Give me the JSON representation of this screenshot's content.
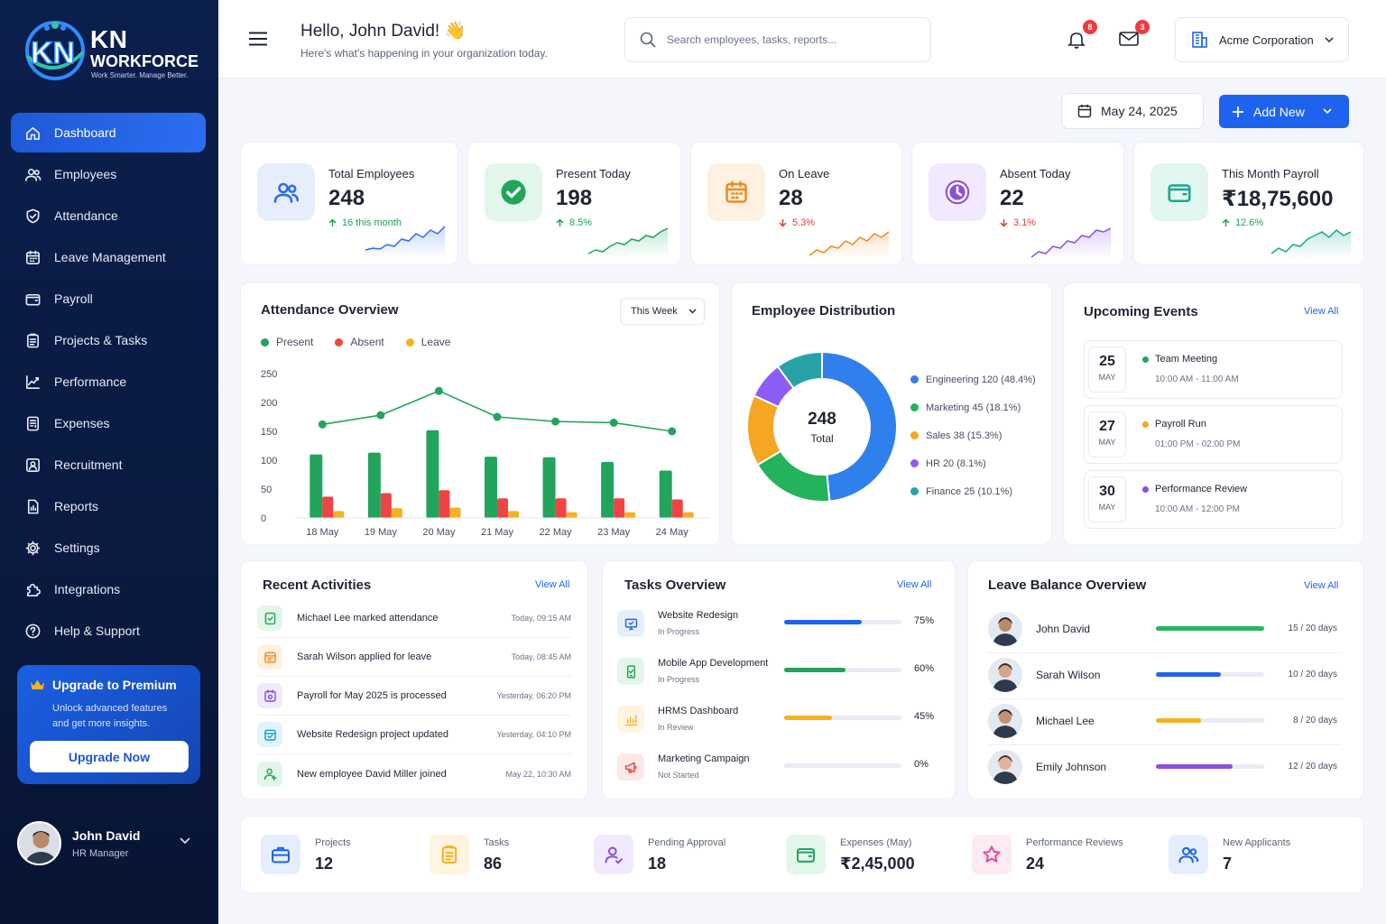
{
  "brand": {
    "title": "KN",
    "subtitle": "WORKFORCE",
    "tagline": "Work Smarter. Manage Better."
  },
  "nav": [
    {
      "label": "Dashboard",
      "icon": "home-icon",
      "active": true
    },
    {
      "label": "Employees",
      "icon": "users-icon"
    },
    {
      "label": "Attendance",
      "icon": "shield-check-icon"
    },
    {
      "label": "Leave Management",
      "icon": "calendar-icon"
    },
    {
      "label": "Payroll",
      "icon": "wallet-icon"
    },
    {
      "label": "Projects & Tasks",
      "icon": "clipboard-icon"
    },
    {
      "label": "Performance",
      "icon": "chart-line-icon"
    },
    {
      "label": "Expenses",
      "icon": "receipt-icon"
    },
    {
      "label": "Recruitment",
      "icon": "user-plus-icon"
    },
    {
      "label": "Reports",
      "icon": "report-icon"
    },
    {
      "label": "Settings",
      "icon": "gear-icon"
    },
    {
      "label": "Integrations",
      "icon": "puzzle-icon"
    },
    {
      "label": "Help & Support",
      "icon": "help-icon"
    }
  ],
  "premium": {
    "title": "Upgrade to Premium",
    "desc": "Unlock advanced features and get more insights.",
    "button": "Upgrade Now"
  },
  "user": {
    "name": "John David",
    "role": "HR Manager"
  },
  "header": {
    "greeting": "Hello, John David! 👋",
    "subtitle": "Here's what's happening in your organization today.",
    "search_placeholder": "Search employees, tasks, reports...",
    "notif_count": "8",
    "mail_count": "3",
    "company": "Acme Corporation"
  },
  "toolbar": {
    "date": "May 24, 2025",
    "add_label": "Add New"
  },
  "stats": [
    {
      "label": "Total Employees",
      "value": "248",
      "trend": "16 this month",
      "dir": "up",
      "color": "#2f6bef",
      "bg": "#e6eefe",
      "trend_color": "#1ea353",
      "icon": "users-icon"
    },
    {
      "label": "Present Today",
      "value": "198",
      "trend": "8.5%",
      "dir": "up",
      "color": "#22a45d",
      "bg": "#e3f6ea",
      "trend_color": "#1ea353",
      "icon": "check-circle-icon"
    },
    {
      "label": "On Leave",
      "value": "28",
      "trend": "5.3%",
      "dir": "down",
      "color": "#f08a1c",
      "bg": "#fff1e2",
      "trend_color": "#e53935",
      "icon": "calendar-icon"
    },
    {
      "label": "Absent Today",
      "value": "22",
      "trend": "3.1%",
      "dir": "down",
      "color": "#8b4fe0",
      "bg": "#f1e9fd",
      "trend_color": "#e53935",
      "icon": "clock-icon"
    },
    {
      "label": "This Month Payroll",
      "value": "₹18,75,600",
      "trend": "12.6%",
      "dir": "up",
      "color": "#18a88e",
      "bg": "#e2f6f1",
      "trend_color": "#1ea353",
      "icon": "wallet-icon"
    }
  ],
  "attendance": {
    "title": "Attendance Overview",
    "filter": "This Week"
  },
  "distribution": {
    "title": "Employee Distribution",
    "total": "248",
    "total_label": "Total"
  },
  "events": {
    "title": "Upcoming Events",
    "view_all": "View All",
    "items": [
      {
        "day": "25",
        "month": "MAY",
        "title": "Team Meeting",
        "time": "10:00 AM - 11:00 AM",
        "color": "#22a45d"
      },
      {
        "day": "27",
        "month": "MAY",
        "title": "Payroll Run",
        "time": "01:00 PM - 02:00 PM",
        "color": "#f5a623"
      },
      {
        "day": "30",
        "month": "MAY",
        "title": "Performance Review",
        "time": "10:00 AM - 12:00 PM",
        "color": "#8b4fe0"
      }
    ]
  },
  "activities": {
    "title": "Recent Activities",
    "view_all": "View All",
    "items": [
      {
        "text": "Michael Lee marked attendance",
        "time": "Today, 09:15 AM",
        "color": "#22a45d",
        "bg": "#e3f6ea",
        "icon": "attendance-icon"
      },
      {
        "text": "Sarah Wilson applied for leave",
        "time": "Today, 08:45 AM",
        "color": "#f08a1c",
        "bg": "#fff1e2",
        "icon": "leave-icon"
      },
      {
        "text": "Payroll for May 2025 is processed",
        "time": "Yesterday, 06:20 PM",
        "color": "#8b4fe0",
        "bg": "#f1e9fd",
        "icon": "payroll-icon"
      },
      {
        "text": "Website Redesign project updated",
        "time": "Yesterday, 04:10 PM",
        "color": "#18a0c8",
        "bg": "#e2f4fb",
        "icon": "project-icon"
      },
      {
        "text": "New employee David Miller joined",
        "time": "May 22, 10:30 AM",
        "color": "#22a45d",
        "bg": "#e3f6ea",
        "icon": "user-add-icon"
      }
    ]
  },
  "tasks": {
    "title": "Tasks Overview",
    "view_all": "View All",
    "items": [
      {
        "name": "Website Redesign",
        "status": "In Progress",
        "pct": "75%",
        "fill": 0.66,
        "color": "#1e63ee",
        "bg": "#e6eefe",
        "icon": "monitor-icon"
      },
      {
        "name": "Mobile App Development",
        "status": "In Progress",
        "pct": "60%",
        "fill": 0.52,
        "color": "#22a45d",
        "bg": "#e3f6ea",
        "icon": "phone-icon"
      },
      {
        "name": "HRMS Dashboard",
        "status": "In Review",
        "pct": "45%",
        "fill": 0.41,
        "color": "#f5b120",
        "bg": "#fff4df",
        "icon": "chart-bar-icon"
      },
      {
        "name": "Marketing Campaign",
        "status": "Not Started",
        "pct": "0%",
        "fill": 0,
        "color": "#ef4444",
        "bg": "#fde8e8",
        "icon": "megaphone-icon"
      }
    ]
  },
  "leave_balance": {
    "title": "Leave Balance Overview",
    "view_all": "View All",
    "items": [
      {
        "name": "John David",
        "days": "15 / 20 days",
        "fill": 1.0,
        "color": "#22b864"
      },
      {
        "name": "Sarah Wilson",
        "days": "10 / 20 days",
        "fill": 0.6,
        "color": "#1e63ee"
      },
      {
        "name": "Michael Lee",
        "days": "8 / 20 days",
        "fill": 0.42,
        "color": "#f5b120"
      },
      {
        "name": "Emily Johnson",
        "days": "12 / 20 days",
        "fill": 0.71,
        "color": "#8b4fe0"
      }
    ]
  },
  "summary": [
    {
      "label": "Projects",
      "value": "12",
      "color": "#1e63ee",
      "bg": "#e6eefe",
      "icon": "briefcase-icon"
    },
    {
      "label": "Tasks",
      "value": "86",
      "color": "#f5b120",
      "bg": "#fff4df",
      "icon": "clipboard-icon"
    },
    {
      "label": "Pending Approval",
      "value": "18",
      "color": "#8b4fe0",
      "bg": "#f1e9fd",
      "icon": "user-check-icon"
    },
    {
      "label": "Expenses (May)",
      "value": "₹2,45,000",
      "color": "#22a45d",
      "bg": "#e3f6ea",
      "icon": "wallet-icon"
    },
    {
      "label": "Performance Reviews",
      "value": "24",
      "color": "#ec4899",
      "bg": "#fdeaf3",
      "icon": "star-icon"
    },
    {
      "label": "New Applicants",
      "value": "7",
      "color": "#1e63ee",
      "bg": "#e6eefe",
      "icon": "users-icon"
    }
  ],
  "chart_data": [
    {
      "type": "bar",
      "title": "Attendance Overview",
      "categories": [
        "18 May",
        "19 May",
        "20 May",
        "21 May",
        "22 May",
        "23 May",
        "24 May"
      ],
      "series": [
        {
          "name": "Present",
          "kind": "bar",
          "color": "#22a45d",
          "values": [
            110,
            113,
            152,
            106,
            105,
            97,
            82
          ]
        },
        {
          "name": "Absent",
          "kind": "bar",
          "color": "#ef4444",
          "values": [
            37,
            43,
            48,
            34,
            34,
            34,
            32
          ]
        },
        {
          "name": "Leave",
          "kind": "bar",
          "color": "#f5b120",
          "values": [
            12,
            17,
            18,
            12,
            10,
            10,
            10
          ]
        },
        {
          "kind": "line",
          "color": "#22a45d",
          "values": [
            162,
            178,
            220,
            175,
            167,
            165,
            150
          ]
        }
      ],
      "yticks": [
        0,
        50,
        100,
        150,
        200,
        250
      ],
      "ylim": [
        0,
        250
      ],
      "legend": "top-left"
    },
    {
      "type": "pie",
      "title": "Employee Distribution",
      "slices": [
        {
          "label": "Engineering 120 (48.4%)",
          "value": 120,
          "color": "#2f80ed"
        },
        {
          "label": "Marketing 45 (18.1%)",
          "value": 45,
          "color": "#22b35c"
        },
        {
          "label": "Sales 38 (15.3%)",
          "value": 38,
          "color": "#f5a623"
        },
        {
          "label": "HR 20 (8.1%)",
          "value": 20,
          "color": "#8b5cf6"
        },
        {
          "label": "Finance 25 (10.1%)",
          "value": 25,
          "color": "#27a3a8"
        }
      ],
      "legend": "right"
    }
  ]
}
